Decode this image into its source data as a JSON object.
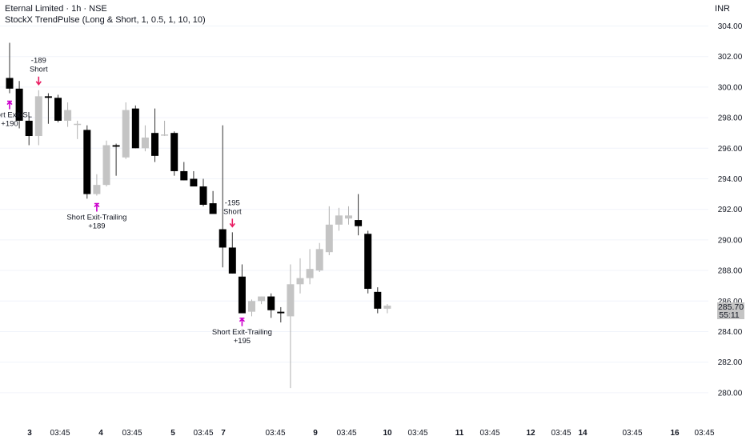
{
  "header": {
    "symbol_line": "Eternal Limited · 1h · NSE",
    "indicator_line": "StockX TrendPulse (Long & Short, 1, 0.5, 1, 10, 10)",
    "currency": "INR"
  },
  "price_badge": {
    "price": "285.70",
    "countdown": "55:11"
  },
  "colors": {
    "up": "#c4c4c4",
    "down": "#000000",
    "marker": "#e91e63",
    "exit": "#cc00cc",
    "text": "#131722",
    "grid": "#f0f3fa"
  },
  "chart_data": {
    "type": "candlestick",
    "ylim": [
      279,
      305
    ],
    "y_ticks": [
      "304.00",
      "302.00",
      "300.00",
      "298.00",
      "296.00",
      "294.00",
      "292.00",
      "290.00",
      "288.00",
      "286.00",
      "284.00",
      "282.00",
      "280.00"
    ],
    "x_ticks": [
      "3",
      "03:45",
      "4",
      "03:45",
      "5",
      "03:45",
      "7",
      "03:45",
      "9",
      "03:45",
      "10",
      "03:45",
      "11",
      "03:45",
      "12",
      "03:45",
      "14",
      "03:45",
      "16",
      "03:45"
    ],
    "x_ticks_bold": [
      true,
      false,
      true,
      false,
      true,
      false,
      true,
      false,
      true,
      false,
      true,
      false,
      true,
      false,
      true,
      false,
      true,
      false,
      true,
      false
    ],
    "candles": [
      {
        "o": 300.6,
        "h": 302.9,
        "l": 299.6,
        "c": 299.9
      },
      {
        "o": 299.9,
        "h": 300.4,
        "l": 297.3,
        "c": 297.8
      },
      {
        "o": 297.8,
        "h": 298.1,
        "l": 296.2,
        "c": 296.8
      },
      {
        "o": 296.8,
        "h": 299.8,
        "l": 296.2,
        "c": 299.4
      },
      {
        "o": 299.4,
        "h": 299.6,
        "l": 297.6,
        "c": 299.3
      },
      {
        "o": 299.3,
        "h": 299.5,
        "l": 297.7,
        "c": 297.8
      },
      {
        "o": 297.8,
        "h": 299.0,
        "l": 297.4,
        "c": 298.5
      },
      {
        "o": 297.6,
        "h": 297.8,
        "l": 296.6,
        "c": 297.6
      },
      {
        "o": 297.2,
        "h": 297.5,
        "l": 292.7,
        "c": 293.0
      },
      {
        "o": 293.0,
        "h": 294.3,
        "l": 292.9,
        "c": 293.6
      },
      {
        "o": 293.6,
        "h": 296.5,
        "l": 293.5,
        "c": 296.2
      },
      {
        "o": 296.2,
        "h": 296.3,
        "l": 294.2,
        "c": 296.1
      },
      {
        "o": 295.4,
        "h": 299.0,
        "l": 295.3,
        "c": 298.5
      },
      {
        "o": 298.6,
        "h": 298.8,
        "l": 296.0,
        "c": 296.0
      },
      {
        "o": 296.0,
        "h": 297.5,
        "l": 295.8,
        "c": 296.7
      },
      {
        "o": 297.0,
        "h": 298.6,
        "l": 295.1,
        "c": 295.5
      },
      {
        "o": 296.9,
        "h": 297.8,
        "l": 296.8,
        "c": 296.9
      },
      {
        "o": 297.0,
        "h": 297.1,
        "l": 294.2,
        "c": 294.5
      },
      {
        "o": 294.5,
        "h": 295.1,
        "l": 293.9,
        "c": 293.9
      },
      {
        "o": 294.0,
        "h": 294.5,
        "l": 293.7,
        "c": 293.5
      },
      {
        "o": 293.5,
        "h": 294.0,
        "l": 292.2,
        "c": 292.3
      },
      {
        "o": 292.4,
        "h": 293.2,
        "l": 291.8,
        "c": 291.7
      },
      {
        "o": 290.7,
        "h": 297.5,
        "l": 288.2,
        "c": 289.5
      },
      {
        "o": 289.5,
        "h": 290.5,
        "l": 287.8,
        "c": 287.8
      },
      {
        "o": 287.6,
        "h": 288.4,
        "l": 285.4,
        "c": 285.2
      },
      {
        "o": 285.3,
        "h": 286.1,
        "l": 285.0,
        "c": 286.0
      },
      {
        "o": 286.0,
        "h": 286.3,
        "l": 285.8,
        "c": 286.3
      },
      {
        "o": 286.3,
        "h": 286.5,
        "l": 284.9,
        "c": 285.4
      },
      {
        "o": 285.3,
        "h": 285.6,
        "l": 284.6,
        "c": 285.2
      },
      {
        "o": 285.0,
        "h": 288.4,
        "l": 280.3,
        "c": 287.1
      },
      {
        "o": 287.1,
        "h": 288.8,
        "l": 286.5,
        "c": 287.5
      },
      {
        "o": 287.5,
        "h": 289.4,
        "l": 287.1,
        "c": 288.1
      },
      {
        "o": 288.0,
        "h": 289.8,
        "l": 287.9,
        "c": 289.4
      },
      {
        "o": 289.2,
        "h": 292.2,
        "l": 289.0,
        "c": 291.0
      },
      {
        "o": 291.0,
        "h": 292.1,
        "l": 290.6,
        "c": 291.6
      },
      {
        "o": 291.4,
        "h": 292.2,
        "l": 291.0,
        "c": 291.6
      },
      {
        "o": 291.3,
        "h": 293.0,
        "l": 290.3,
        "c": 290.9
      },
      {
        "o": 290.4,
        "h": 290.6,
        "l": 286.5,
        "c": 286.8
      },
      {
        "o": 286.6,
        "h": 286.9,
        "l": 285.2,
        "c": 285.5
      },
      {
        "o": 285.5,
        "h": 285.8,
        "l": 285.2,
        "c": 285.7
      }
    ],
    "annotations": [
      {
        "kind": "short-entry",
        "index": 3,
        "pnl": "-189",
        "label": "Short"
      },
      {
        "kind": "short-exit",
        "index": 0,
        "label": "Short Exit-SL",
        "pnl": "+190"
      },
      {
        "kind": "short-exit",
        "index": 9,
        "label": "Short Exit-Trailing",
        "pnl": "+189"
      },
      {
        "kind": "short-entry",
        "index": 23,
        "pnl": "-195",
        "label": "Short"
      },
      {
        "kind": "short-exit",
        "index": 24,
        "label": "Short Exit-Trailing",
        "pnl": "+195"
      }
    ]
  }
}
